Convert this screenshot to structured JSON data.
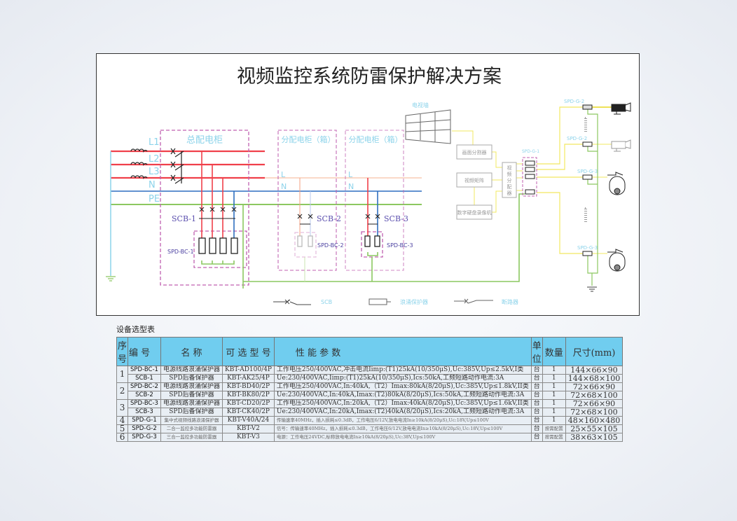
{
  "title": "视频监控系统防雷保护解决方案",
  "diagram": {
    "main_cabinet": "总配电柜",
    "sub_cabinet_1": "分配电柜（箱）",
    "sub_cabinet_2": "分配电柜（箱）",
    "lines": {
      "l1": "L1",
      "l2": "L2",
      "l3": "L3",
      "n": "N",
      "pe": "PE",
      "l": "L",
      "n2": "N"
    },
    "scb1": "SCB-1",
    "scb2": "SCB-2",
    "scb3": "SCB-3",
    "spd_bc1": "SPD-BC-1",
    "spd_bc2": "SPD-BC-2",
    "spd_bc3": "SPD-BC-3",
    "tv_wall": "电视墙",
    "splitter": "画面分割器",
    "matrix": "视频矩阵",
    "dvr": "数字硬盘录像机",
    "distributor": [
      "视",
      "频",
      "分",
      "配",
      "器"
    ],
    "spd_g1": "SPD-G-1",
    "spd_g2a": "SPD-G-2",
    "spd_g2b": "SPD-G-2",
    "spd_g3a": "SPD-G-3",
    "spd_g3b": "SPD-G-3",
    "legend": {
      "scb": "SCB",
      "spd": "浪涌保护器",
      "breaker": "断路器"
    },
    "colors": {
      "live": "#f0404a",
      "neutral": "#2f6fc0",
      "pe": "#8cc860",
      "cabinet": "#c060b0",
      "signal": "#f2e860"
    }
  },
  "table": {
    "caption": "设备选型表",
    "headers": [
      "序号",
      "编  号",
      "名  称",
      "可 选 型 号",
      "性 能 参 数",
      "单位",
      "数量",
      "尺寸(mm)"
    ],
    "rows": [
      {
        "no": "1",
        "code": "SPD-BC-1",
        "name": "电源线路浪涌保护器",
        "model": "KBT-AD100/4P",
        "params": "工作电压250/400VAC,冲击电流Iimp:(T1)25kA(10/350μS),Uc:385V,Up≤2.5kV,I类",
        "unit": "台",
        "qty": "1",
        "size": "144×66×90"
      },
      {
        "no": "",
        "code": "SCB-1",
        "name": "SPD后备保护器",
        "model": "KBT-AK25/4P",
        "params": "Ue:230/400VAC,Iimp:(T1)25kA(10/350μS),Ics:50kA,工频短路动作电流:3A",
        "unit": "台",
        "qty": "1",
        "size": "144×68×100"
      },
      {
        "no": "2",
        "code": "SPD-BC-2",
        "name": "电源线路浪涌保护器",
        "model": "KBT-BD40/2P",
        "params": "工作电压250/400VAC,In:40kA,（T2）Imax:80kA(8/20μS),Uc:385V,Up≤1.8kV,II类",
        "unit": "台",
        "qty": "1",
        "size": "72×66×90"
      },
      {
        "no": "",
        "code": "SCB-2",
        "name": "SPD后备保护器",
        "model": "KBT-BK80/2P",
        "params": "Ue:230/400VAC,In:40kA,Imax:(T2)80kA(8/20μS),Ics:50kA,工频短路动作电流:3A",
        "unit": "台",
        "qty": "1",
        "size": "72×68×100"
      },
      {
        "no": "3",
        "code": "SPD-BC-3",
        "name": "电源线路浪涌保护器",
        "model": "KBT-CD20/2P",
        "params": "工作电压250/400VAC,In:20kA,（T2）Imax:40kA(8/20μS),Uc:385V,Up≤1.6kV,II类",
        "unit": "台",
        "qty": "1",
        "size": "72×66×90"
      },
      {
        "no": "",
        "code": "SCB-3",
        "name": "SPD后备保护器",
        "model": "KBT-CK40/2P",
        "params": "Ue:230/400VAC,In:20kA,Imax:(T2)40kA(8/20μS),Ics:20kA,工频短路动作电流:3A",
        "unit": "台",
        "qty": "1",
        "size": "72×68×100"
      },
      {
        "no": "4",
        "code": "SPD-G-1",
        "name": "集中式视频线路浪涌保护器",
        "model": "KBT-V40A/24",
        "params": "传输速率40MHz，插入损耗≤0.3dB，工作电压6/12V,放电电流In≥10kA(8/20μS),Uc:18V,Up≤100V",
        "unit": "台",
        "qty": "1",
        "size": "48×160×480"
      },
      {
        "no": "5",
        "code": "SPD-G-2",
        "name": "二合一监控多功能防雷器",
        "model": "KBT-V2",
        "params": "信号：传输速率40MHz，插入损耗≤0.3dB，工作电压6/12V,放电电流In≥10kA(8/20μS),Uc:18V,Up≤100V",
        "unit": "台",
        "qty": "按需配置",
        "size": "25×55×105"
      },
      {
        "no": "6",
        "code": "SPD-G-3",
        "name": "三合一监控多功能防雷器",
        "model": "KBT-V3",
        "params": "电源：工作电压24VDC,标称放电电流In≥10kA(8/20μS),Uc:38V,Up≤100V",
        "unit": "台",
        "qty": "按需配置",
        "size": "38×63×105"
      }
    ]
  }
}
